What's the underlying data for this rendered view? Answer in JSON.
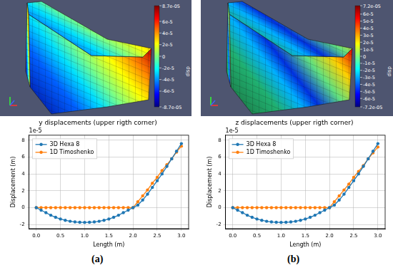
{
  "chart_data": [
    {
      "type": "line",
      "title": "y displacements (upper rigth corner)",
      "x_label": "Length (m)",
      "y_label": "Displacement (m)",
      "annotations": [
        "1e-5"
      ],
      "x": [
        0,
        0.1,
        0.2,
        0.3,
        0.4,
        0.5,
        0.6,
        0.7,
        0.8,
        0.9,
        1.0,
        1.1,
        1.2,
        1.3,
        1.4,
        1.5,
        1.6,
        1.7,
        1.8,
        1.9,
        2.0,
        2.1,
        2.2,
        2.3,
        2.4,
        2.5,
        2.6,
        2.7,
        2.8,
        2.9,
        3.0
      ],
      "series": [
        {
          "name": "3D Hexa 8",
          "color": "#1f77b4",
          "marker": "circle",
          "line_style": "solid",
          "values": [
            0,
            -0.3,
            -0.6,
            -0.9,
            -1.15,
            -1.35,
            -1.5,
            -1.62,
            -1.7,
            -1.74,
            -1.75,
            -1.74,
            -1.7,
            -1.62,
            -1.5,
            -1.35,
            -1.15,
            -0.9,
            -0.6,
            -0.3,
            0,
            0.3,
            0.9,
            1.6,
            2.4,
            3.2,
            4.0,
            4.9,
            5.8,
            6.7,
            7.6
          ]
        },
        {
          "name": "1D Timoshenko",
          "color": "#ff7f0e",
          "marker": "circle",
          "line_style": "solid",
          "values": [
            0,
            0,
            0,
            0,
            0,
            0,
            0,
            0,
            0,
            0,
            0,
            0,
            0,
            0,
            0,
            0,
            0,
            0,
            0,
            0,
            0,
            0.7,
            1.4,
            2.1,
            2.9,
            3.6,
            4.4,
            5.1,
            5.8,
            6.6,
            7.3
          ]
        }
      ],
      "xlim": [
        -0.15,
        3.15
      ],
      "ylim": [
        -2.5,
        8.6
      ],
      "xticks": [
        {
          "value": 0,
          "label": "0.0"
        },
        {
          "value": 0.5,
          "label": "0.5"
        },
        {
          "value": 1,
          "label": "1.0"
        },
        {
          "value": 1.5,
          "label": "1.5"
        },
        {
          "value": 2,
          "label": "2.0"
        },
        {
          "value": 2.5,
          "label": "2.5"
        },
        {
          "value": 3,
          "label": "3.0"
        }
      ],
      "yticks": [
        -2,
        0,
        2,
        4,
        6,
        8
      ],
      "grid": true,
      "legend": "upper left"
    },
    {
      "type": "line",
      "title": "z displacements (upper rigth corner)",
      "x_label": "Length (m)",
      "y_label": "Displacement (m)",
      "annotations": [
        "1e-5"
      ],
      "x": [
        0,
        0.1,
        0.2,
        0.3,
        0.4,
        0.5,
        0.6,
        0.7,
        0.8,
        0.9,
        1.0,
        1.1,
        1.2,
        1.3,
        1.4,
        1.5,
        1.6,
        1.7,
        1.8,
        1.9,
        2.0,
        2.1,
        2.2,
        2.3,
        2.4,
        2.5,
        2.6,
        2.7,
        2.8,
        2.9,
        3.0
      ],
      "series": [
        {
          "name": "3D Hexa 8",
          "color": "#1f77b4",
          "marker": "circle",
          "line_style": "solid",
          "values": [
            0,
            -0.3,
            -0.6,
            -0.9,
            -1.15,
            -1.35,
            -1.5,
            -1.62,
            -1.7,
            -1.74,
            -1.75,
            -1.74,
            -1.7,
            -1.62,
            -1.5,
            -1.35,
            -1.15,
            -0.9,
            -0.6,
            -0.3,
            0,
            0.3,
            0.9,
            1.6,
            2.4,
            3.2,
            4.0,
            4.9,
            5.8,
            6.7,
            7.6
          ]
        },
        {
          "name": "1D Timoshenko",
          "color": "#ff7f0e",
          "marker": "circle",
          "line_style": "solid",
          "values": [
            0,
            0,
            0,
            0,
            0,
            0,
            0,
            0,
            0,
            0,
            0,
            0,
            0,
            0,
            0,
            0,
            0,
            0,
            0,
            0,
            0,
            0.7,
            1.4,
            2.1,
            2.8,
            3.6,
            4.3,
            5.0,
            5.8,
            6.5,
            7.2
          ]
        }
      ],
      "xlim": [
        -0.15,
        3.15
      ],
      "ylim": [
        -2.5,
        8.6
      ],
      "xticks": [
        {
          "value": 0,
          "label": "0.0"
        },
        {
          "value": 0.5,
          "label": "0.5"
        },
        {
          "value": 1,
          "label": "1.0"
        },
        {
          "value": 1.5,
          "label": "1.5"
        },
        {
          "value": 2,
          "label": "2.0"
        },
        {
          "value": 2.5,
          "label": "2.5"
        },
        {
          "value": 3,
          "label": "3.0"
        }
      ],
      "yticks": [
        -2,
        0,
        2,
        4,
        6,
        8
      ],
      "grid": true,
      "legend": "upper left"
    }
  ],
  "renders": [
    {
      "colorbar": {
        "title": "disp",
        "range": [
          -8.7e-05,
          8.7e-05
        ],
        "ticks": [
          {
            "value": 8.7e-05,
            "label": "8.7e-05"
          },
          {
            "value": 6e-05,
            "label": "6e-5"
          },
          {
            "value": 4e-05,
            "label": "4e-5"
          },
          {
            "value": 2e-05,
            "label": "2e-5"
          },
          0,
          {
            "value": -2e-05,
            "label": "-2e-5"
          },
          {
            "value": -4e-05,
            "label": "-4e-5"
          },
          {
            "value": -6e-05,
            "label": "-6e-5"
          },
          {
            "value": -8.7e-05,
            "label": "-8.7e-05"
          }
        ]
      }
    },
    {
      "colorbar": {
        "title": "disp",
        "range": [
          -7.2e-05,
          7.2e-05
        ],
        "ticks": [
          {
            "value": 7.2e-05,
            "label": "7.2e-05"
          },
          {
            "value": 6e-05,
            "label": "6e-5"
          },
          {
            "value": 5e-05,
            "label": "5e-5"
          },
          {
            "value": 4e-05,
            "label": "4e-5"
          },
          {
            "value": 3e-05,
            "label": "3e-5"
          },
          {
            "value": 2e-05,
            "label": "2e-5"
          },
          {
            "value": 1e-05,
            "label": "1e-5"
          },
          0,
          {
            "value": -1e-05,
            "label": "-1e-5"
          },
          {
            "value": -2e-05,
            "label": "-2e-5"
          },
          {
            "value": -3e-05,
            "label": "-3e-5"
          },
          {
            "value": -4e-05,
            "label": "-4e-5"
          },
          {
            "value": -5e-05,
            "label": "-5e-5"
          },
          {
            "value": -6e-05,
            "label": "-6e-5"
          },
          {
            "value": -7.2e-05,
            "label": "-7.2e-05"
          }
        ]
      }
    }
  ],
  "panel_labels": [
    "(a)",
    "(b)"
  ]
}
